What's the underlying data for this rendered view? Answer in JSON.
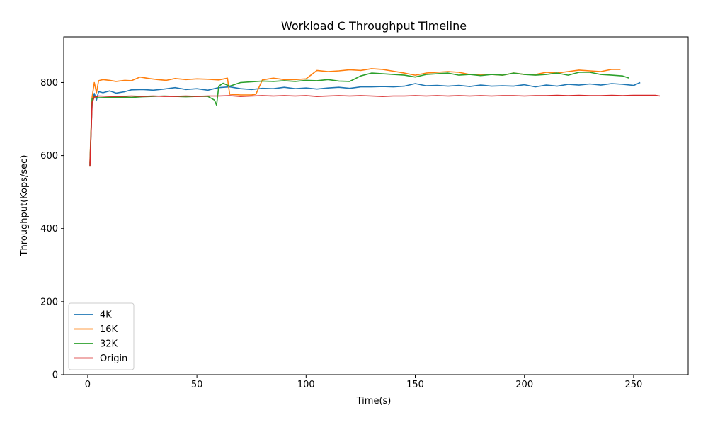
{
  "chart_data": {
    "type": "line",
    "title": "Workload C Throughput Timeline",
    "xlabel": "Time(s)",
    "ylabel": "Throughput(Kops/sec)",
    "xlim": [
      -11,
      275
    ],
    "ylim": [
      0,
      925
    ],
    "xticks": [
      0,
      50,
      100,
      150,
      200,
      250
    ],
    "yticks": [
      0,
      200,
      400,
      600,
      800
    ],
    "legend_position": "lower-left",
    "grid": false,
    "series": [
      {
        "name": "4K",
        "color": "#1f77b4",
        "points": [
          [
            1,
            575
          ],
          [
            2,
            745
          ],
          [
            3,
            770
          ],
          [
            4,
            752
          ],
          [
            5,
            775
          ],
          [
            7,
            772
          ],
          [
            10,
            777
          ],
          [
            13,
            771
          ],
          [
            17,
            775
          ],
          [
            20,
            780
          ],
          [
            25,
            781
          ],
          [
            30,
            779
          ],
          [
            35,
            782
          ],
          [
            40,
            786
          ],
          [
            45,
            781
          ],
          [
            50,
            783
          ],
          [
            55,
            779
          ],
          [
            60,
            786
          ],
          [
            65,
            788
          ],
          [
            70,
            783
          ],
          [
            75,
            781
          ],
          [
            80,
            784
          ],
          [
            85,
            783
          ],
          [
            90,
            787
          ],
          [
            95,
            783
          ],
          [
            100,
            785
          ],
          [
            105,
            782
          ],
          [
            110,
            785
          ],
          [
            115,
            787
          ],
          [
            120,
            784
          ],
          [
            125,
            788
          ],
          [
            130,
            788
          ],
          [
            135,
            789
          ],
          [
            140,
            788
          ],
          [
            145,
            790
          ],
          [
            150,
            797
          ],
          [
            155,
            791
          ],
          [
            160,
            792
          ],
          [
            165,
            790
          ],
          [
            170,
            792
          ],
          [
            175,
            789
          ],
          [
            180,
            793
          ],
          [
            185,
            790
          ],
          [
            190,
            791
          ],
          [
            195,
            790
          ],
          [
            200,
            794
          ],
          [
            205,
            788
          ],
          [
            210,
            793
          ],
          [
            215,
            790
          ],
          [
            220,
            795
          ],
          [
            225,
            793
          ],
          [
            230,
            796
          ],
          [
            235,
            793
          ],
          [
            240,
            797
          ],
          [
            245,
            795
          ],
          [
            250,
            792
          ],
          [
            253,
            800
          ]
        ]
      },
      {
        "name": "16K",
        "color": "#ff7f0e",
        "points": [
          [
            1,
            580
          ],
          [
            2,
            760
          ],
          [
            3,
            800
          ],
          [
            4,
            772
          ],
          [
            5,
            805
          ],
          [
            7,
            808
          ],
          [
            10,
            806
          ],
          [
            13,
            803
          ],
          [
            17,
            806
          ],
          [
            20,
            805
          ],
          [
            24,
            815
          ],
          [
            28,
            811
          ],
          [
            32,
            808
          ],
          [
            36,
            806
          ],
          [
            40,
            811
          ],
          [
            45,
            808
          ],
          [
            50,
            810
          ],
          [
            55,
            809
          ],
          [
            60,
            807
          ],
          [
            64,
            812
          ],
          [
            65,
            768
          ],
          [
            70,
            766
          ],
          [
            75,
            766
          ],
          [
            77,
            768
          ],
          [
            80,
            807
          ],
          [
            85,
            812
          ],
          [
            90,
            808
          ],
          [
            95,
            808
          ],
          [
            100,
            810
          ],
          [
            105,
            833
          ],
          [
            110,
            830
          ],
          [
            115,
            832
          ],
          [
            120,
            835
          ],
          [
            125,
            833
          ],
          [
            130,
            838
          ],
          [
            135,
            836
          ],
          [
            140,
            831
          ],
          [
            145,
            826
          ],
          [
            150,
            820
          ],
          [
            155,
            826
          ],
          [
            160,
            828
          ],
          [
            165,
            830
          ],
          [
            170,
            828
          ],
          [
            175,
            822
          ],
          [
            180,
            822
          ],
          [
            185,
            822
          ],
          [
            190,
            820
          ],
          [
            195,
            826
          ],
          [
            200,
            822
          ],
          [
            205,
            822
          ],
          [
            210,
            828
          ],
          [
            215,
            826
          ],
          [
            220,
            830
          ],
          [
            225,
            834
          ],
          [
            230,
            832
          ],
          [
            235,
            830
          ],
          [
            240,
            836
          ],
          [
            244,
            836
          ]
        ]
      },
      {
        "name": "32K",
        "color": "#2ca02c",
        "points": [
          [
            1,
            570
          ],
          [
            2,
            755
          ],
          [
            3,
            762
          ],
          [
            5,
            758
          ],
          [
            10,
            759
          ],
          [
            15,
            760
          ],
          [
            20,
            759
          ],
          [
            25,
            761
          ],
          [
            30,
            762
          ],
          [
            35,
            763
          ],
          [
            40,
            762
          ],
          [
            45,
            761
          ],
          [
            50,
            762
          ],
          [
            55,
            762
          ],
          [
            58,
            752
          ],
          [
            59,
            738
          ],
          [
            60,
            790
          ],
          [
            62,
            798
          ],
          [
            65,
            790
          ],
          [
            70,
            800
          ],
          [
            75,
            802
          ],
          [
            80,
            804
          ],
          [
            85,
            803
          ],
          [
            90,
            805
          ],
          [
            95,
            803
          ],
          [
            100,
            806
          ],
          [
            105,
            805
          ],
          [
            110,
            808
          ],
          [
            115,
            804
          ],
          [
            120,
            803
          ],
          [
            125,
            818
          ],
          [
            130,
            826
          ],
          [
            135,
            824
          ],
          [
            140,
            822
          ],
          [
            145,
            820
          ],
          [
            150,
            815
          ],
          [
            155,
            822
          ],
          [
            160,
            824
          ],
          [
            165,
            826
          ],
          [
            170,
            820
          ],
          [
            175,
            822
          ],
          [
            180,
            819
          ],
          [
            185,
            822
          ],
          [
            190,
            820
          ],
          [
            195,
            826
          ],
          [
            200,
            822
          ],
          [
            205,
            820
          ],
          [
            210,
            822
          ],
          [
            215,
            826
          ],
          [
            220,
            820
          ],
          [
            225,
            828
          ],
          [
            230,
            828
          ],
          [
            235,
            822
          ],
          [
            240,
            820
          ],
          [
            245,
            818
          ],
          [
            248,
            812
          ]
        ]
      },
      {
        "name": "Origin",
        "color": "#d62728",
        "points": [
          [
            1,
            570
          ],
          [
            2,
            745
          ],
          [
            3,
            760
          ],
          [
            5,
            763
          ],
          [
            10,
            762
          ],
          [
            15,
            762
          ],
          [
            20,
            763
          ],
          [
            25,
            762
          ],
          [
            30,
            763
          ],
          [
            35,
            762
          ],
          [
            40,
            762
          ],
          [
            45,
            763
          ],
          [
            50,
            762
          ],
          [
            55,
            763
          ],
          [
            60,
            763
          ],
          [
            65,
            764
          ],
          [
            70,
            762
          ],
          [
            75,
            763
          ],
          [
            80,
            764
          ],
          [
            85,
            763
          ],
          [
            90,
            764
          ],
          [
            95,
            763
          ],
          [
            100,
            764
          ],
          [
            105,
            762
          ],
          [
            110,
            763
          ],
          [
            115,
            764
          ],
          [
            120,
            763
          ],
          [
            125,
            764
          ],
          [
            130,
            763
          ],
          [
            135,
            762
          ],
          [
            140,
            763
          ],
          [
            145,
            763
          ],
          [
            150,
            764
          ],
          [
            155,
            763
          ],
          [
            160,
            764
          ],
          [
            165,
            763
          ],
          [
            170,
            764
          ],
          [
            175,
            763
          ],
          [
            180,
            764
          ],
          [
            185,
            763
          ],
          [
            190,
            764
          ],
          [
            195,
            764
          ],
          [
            200,
            763
          ],
          [
            205,
            764
          ],
          [
            210,
            764
          ],
          [
            215,
            765
          ],
          [
            220,
            764
          ],
          [
            225,
            765
          ],
          [
            230,
            764
          ],
          [
            235,
            764
          ],
          [
            240,
            765
          ],
          [
            245,
            764
          ],
          [
            250,
            765
          ],
          [
            255,
            765
          ],
          [
            260,
            765
          ],
          [
            262,
            763
          ]
        ]
      }
    ]
  }
}
